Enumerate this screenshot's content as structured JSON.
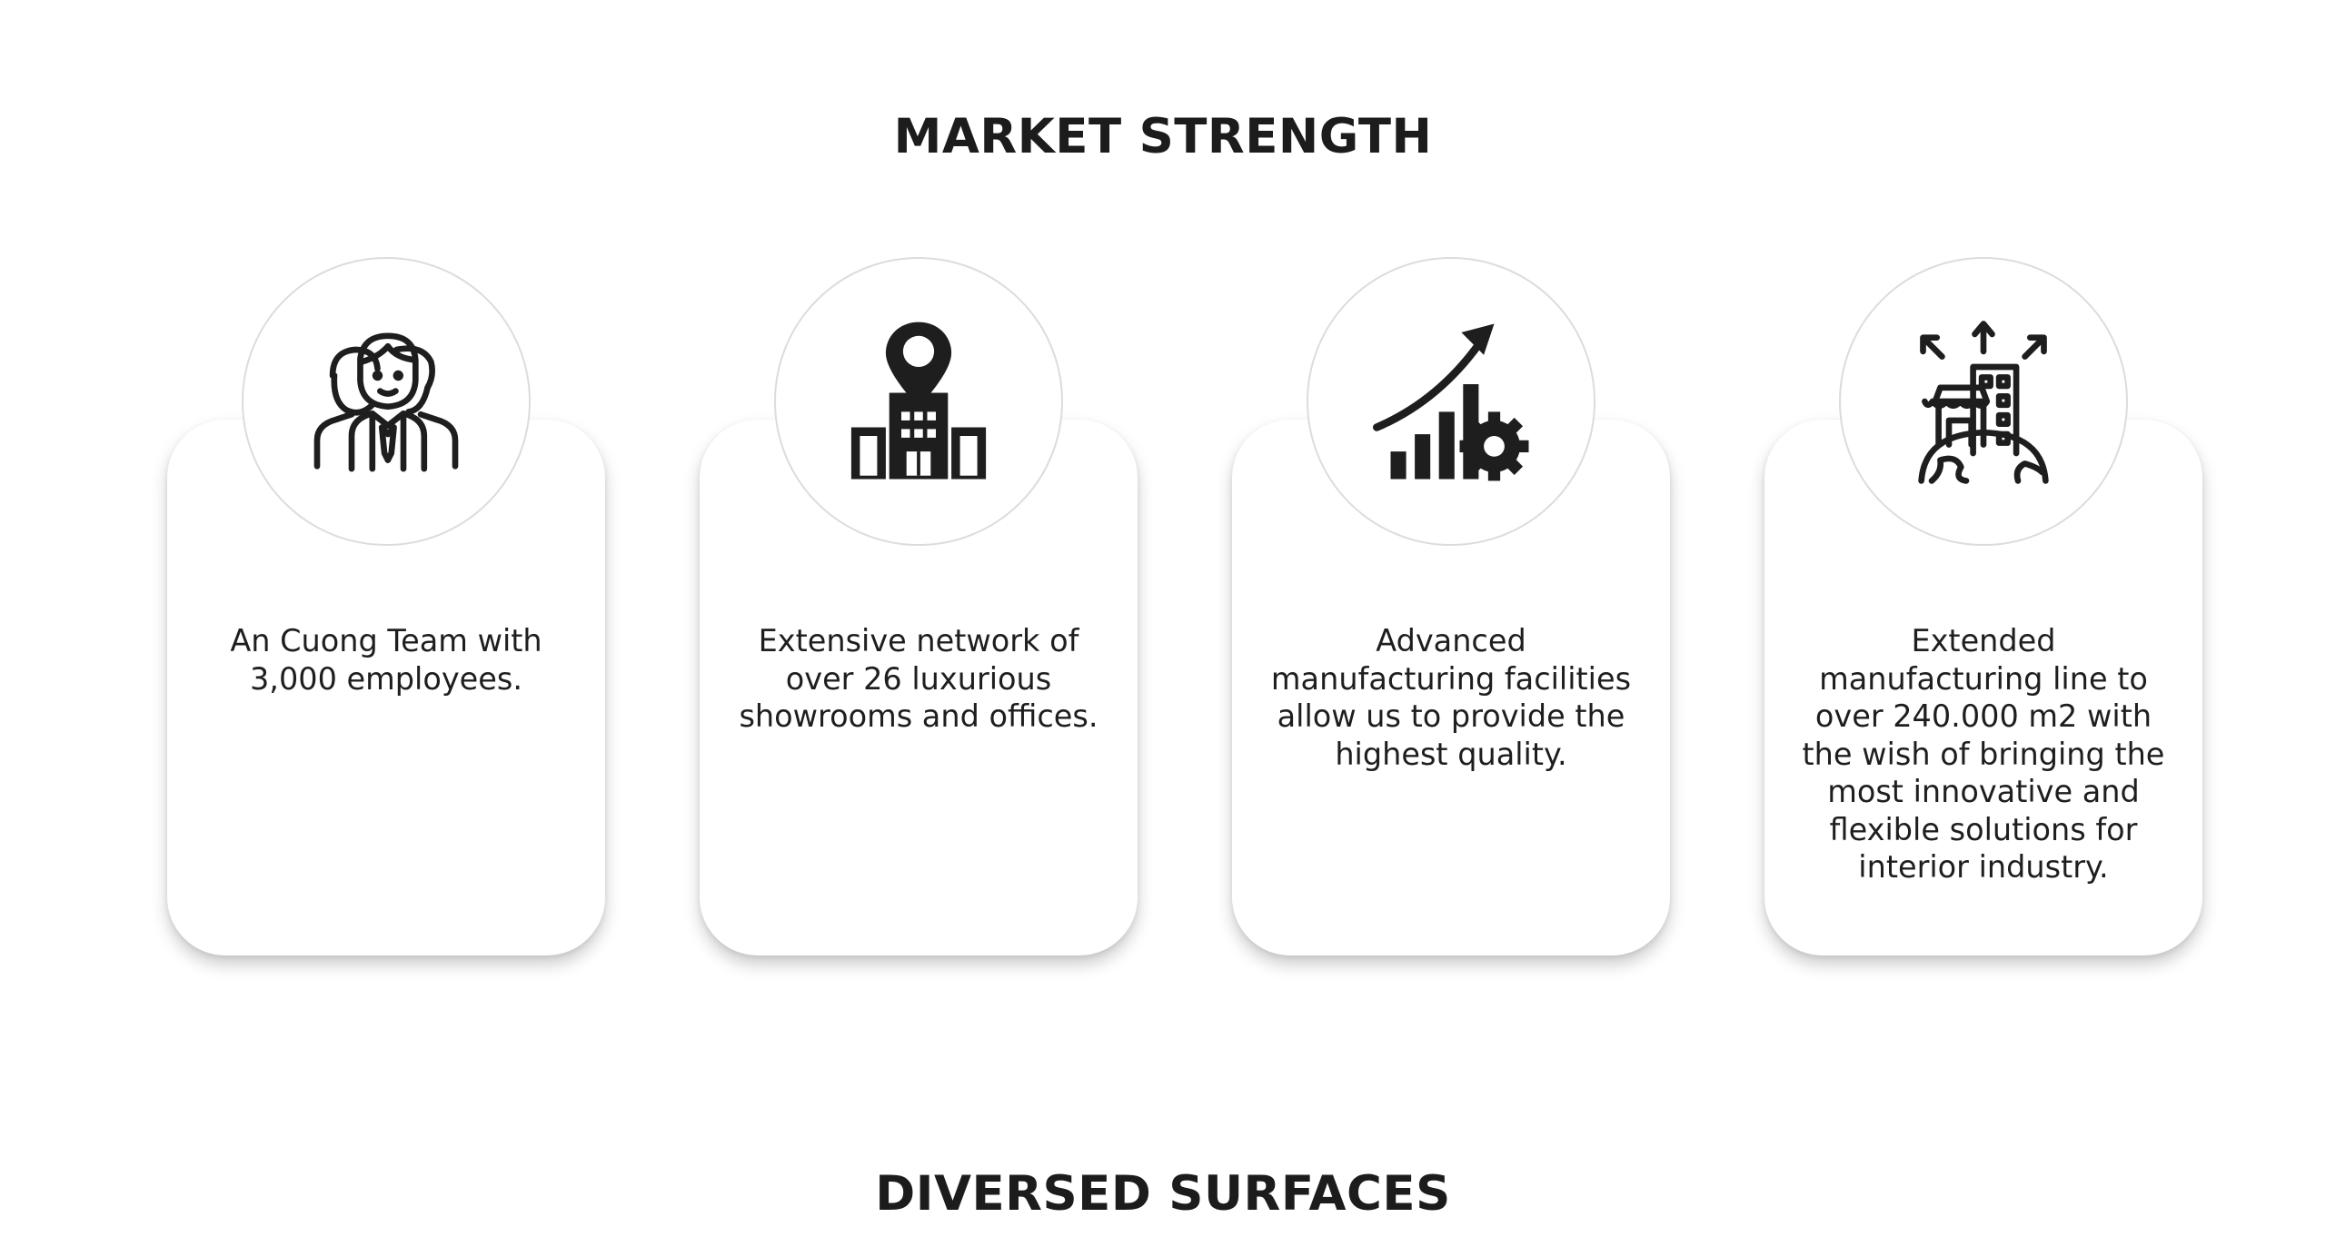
{
  "sections": {
    "market_title": "MARKET STRENGTH",
    "surfaces_title": "DIVERSED SURFACES"
  },
  "cards": [
    {
      "icon": "team-icon",
      "text": "An Cuong Team with 3,000 employees."
    },
    {
      "icon": "building-location-icon",
      "text": "Extensive network of over 26 luxurious showrooms and offices."
    },
    {
      "icon": "growth-gear-icon",
      "text": "Advanced manufacturing facilities allow us to provide the highest quality."
    },
    {
      "icon": "global-expansion-icon",
      "text": "Extended manufacturing line to over 240.000 m2 with the wish of bringing the most innovative and flexible solutions for interior industry."
    }
  ],
  "colors": {
    "icon": "#1e1e1e",
    "circle_border": "#dcdcdc",
    "background": "#ffffff"
  }
}
